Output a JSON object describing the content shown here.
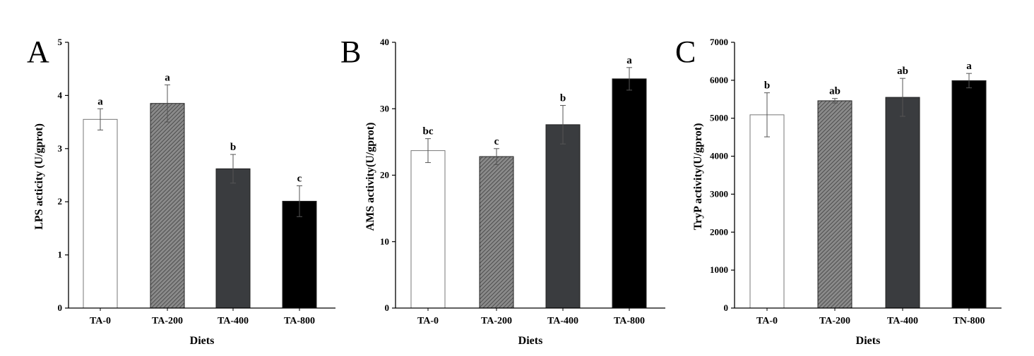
{
  "chart_data": [
    {
      "type": "bar",
      "panel_label": "A",
      "categories": [
        "TA-0",
        "TA-200",
        "TA-400",
        "TA-800"
      ],
      "values": [
        3.55,
        3.85,
        2.62,
        2.01
      ],
      "errors": [
        0.2,
        0.35,
        0.27,
        0.29
      ],
      "significance": [
        "a",
        "a",
        "b",
        "c"
      ],
      "bar_colors": [
        "#ffffff",
        "hatch",
        "#3a3c3f",
        "#000000"
      ],
      "xlabel": "Diets",
      "ylabel": "LPS acticity (U/gprot)",
      "ylim": [
        0,
        5
      ],
      "yticks": [
        "0",
        "1",
        "2",
        "3",
        "4",
        "5"
      ]
    },
    {
      "type": "bar",
      "panel_label": "B",
      "categories": [
        "TA-0",
        "TA-200",
        "TA-400",
        "TA-800"
      ],
      "values": [
        23.7,
        22.8,
        27.6,
        34.5
      ],
      "errors": [
        1.8,
        1.2,
        2.9,
        1.7
      ],
      "significance": [
        "bc",
        "c",
        "b",
        "a"
      ],
      "bar_colors": [
        "#ffffff",
        "hatch",
        "#3a3c3f",
        "#000000"
      ],
      "xlabel": "Diets",
      "ylabel": "AMS activity(U/gprot)",
      "ylim": [
        0,
        40
      ],
      "yticks": [
        "0",
        "10",
        "20",
        "30",
        "40"
      ]
    },
    {
      "type": "bar",
      "panel_label": "C",
      "categories": [
        "TA-0",
        "TA-200",
        "TA-400",
        "TN-800"
      ],
      "values": [
        5090,
        5460,
        5550,
        5990
      ],
      "errors": [
        580,
        60,
        500,
        190
      ],
      "significance": [
        "b",
        "ab",
        "ab",
        "a"
      ],
      "bar_colors": [
        "#ffffff",
        "hatch",
        "#3a3c3f",
        "#000000"
      ],
      "xlabel": "Diets",
      "ylabel": "TryP activity(U/gprot)",
      "ylim": [
        0,
        7000
      ],
      "yticks": [
        "0",
        "1000",
        "2000",
        "3000",
        "4000",
        "5000",
        "6000",
        "7000"
      ]
    }
  ]
}
